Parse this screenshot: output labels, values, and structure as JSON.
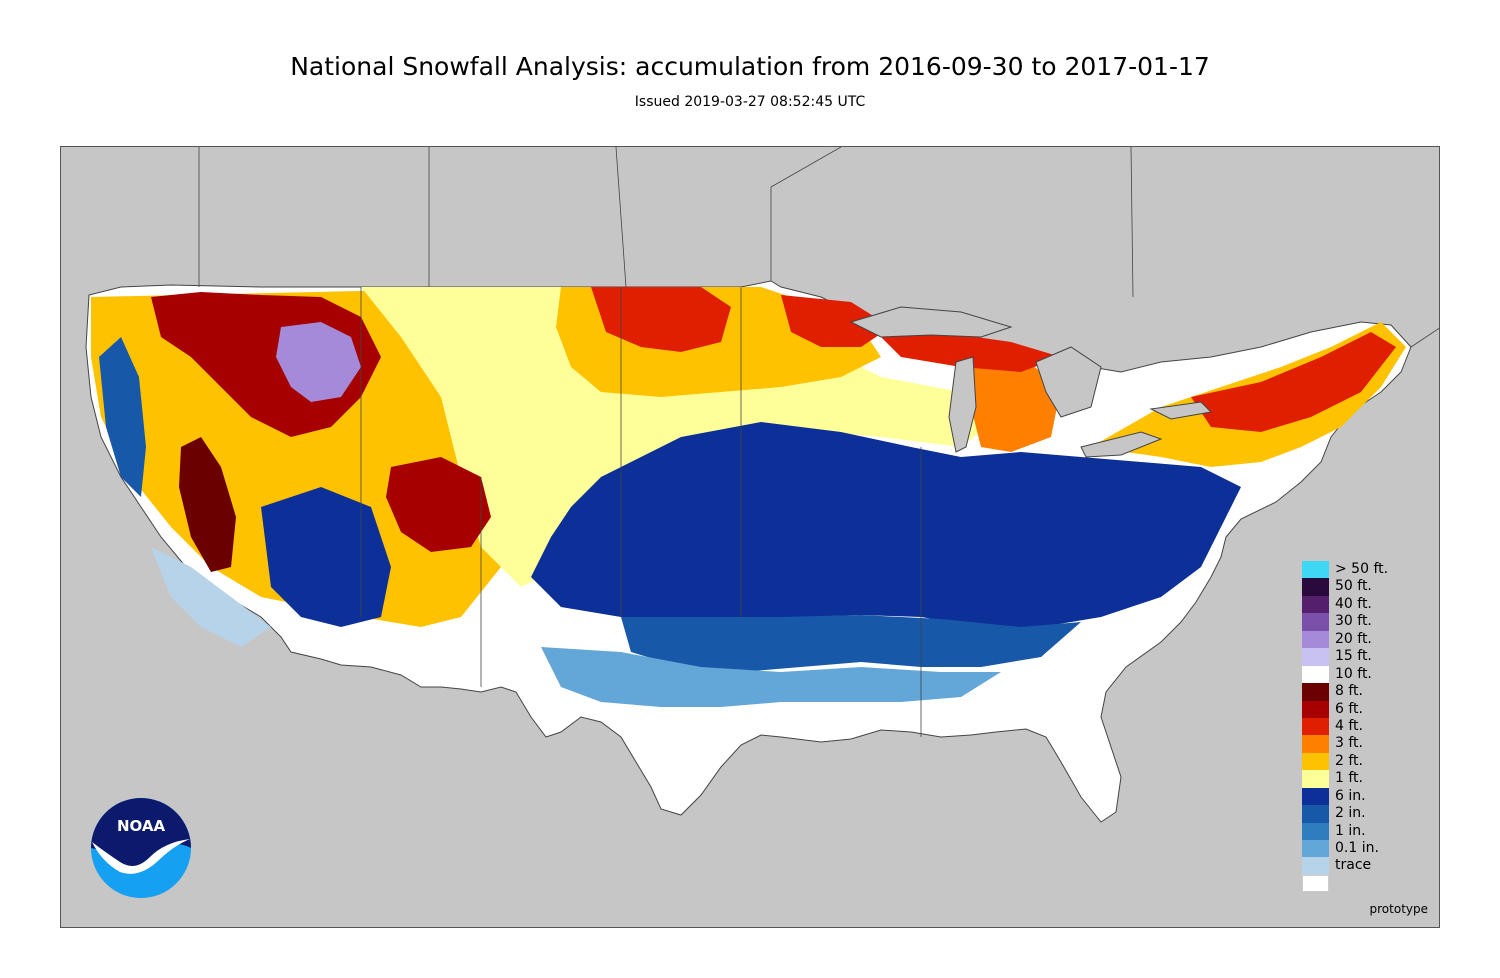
{
  "header": {
    "title": "National Snowfall Analysis: accumulation from 2016-09-30 to 2017-01-17",
    "subtitle": "Issued 2019-03-27 08:52:45 UTC"
  },
  "map": {
    "background_color": "#c6c6c6",
    "land_color": "#ffffff",
    "prototype_label": "prototype"
  },
  "legend": {
    "items": [
      {
        "label": "> 50 ft.",
        "color": "#3fd8f4"
      },
      {
        "label": "50 ft.",
        "color": "#2a0a3c"
      },
      {
        "label": "40 ft.",
        "color": "#54206e"
      },
      {
        "label": "30 ft.",
        "color": "#7c50aa"
      },
      {
        "label": "20 ft.",
        "color": "#a48ad8"
      },
      {
        "label": "15 ft.",
        "color": "#c8c2f2"
      },
      {
        "label": "10 ft.",
        "color": "#ffffff"
      },
      {
        "label": "8 ft.",
        "color": "#6a0000"
      },
      {
        "label": "6 ft.",
        "color": "#a60000"
      },
      {
        "label": "4 ft.",
        "color": "#e01e00"
      },
      {
        "label": "3 ft.",
        "color": "#ff7f00"
      },
      {
        "label": "2 ft.",
        "color": "#ffc200"
      },
      {
        "label": "1 ft.",
        "color": "#ffff99"
      },
      {
        "label": "6 in.",
        "color": "#0c3097"
      },
      {
        "label": "2 in.",
        "color": "#1858a8"
      },
      {
        "label": "1 in.",
        "color": "#2f7dbf"
      },
      {
        "label": "0.1 in.",
        "color": "#63a6d8"
      },
      {
        "label": "trace",
        "color": "#b7d3ea"
      }
    ],
    "trace_bottom_color": "#ffffff"
  },
  "logo": {
    "text": "NOAA",
    "colors": {
      "dark": "#0c1a6e",
      "light": "#16a0f2"
    }
  }
}
